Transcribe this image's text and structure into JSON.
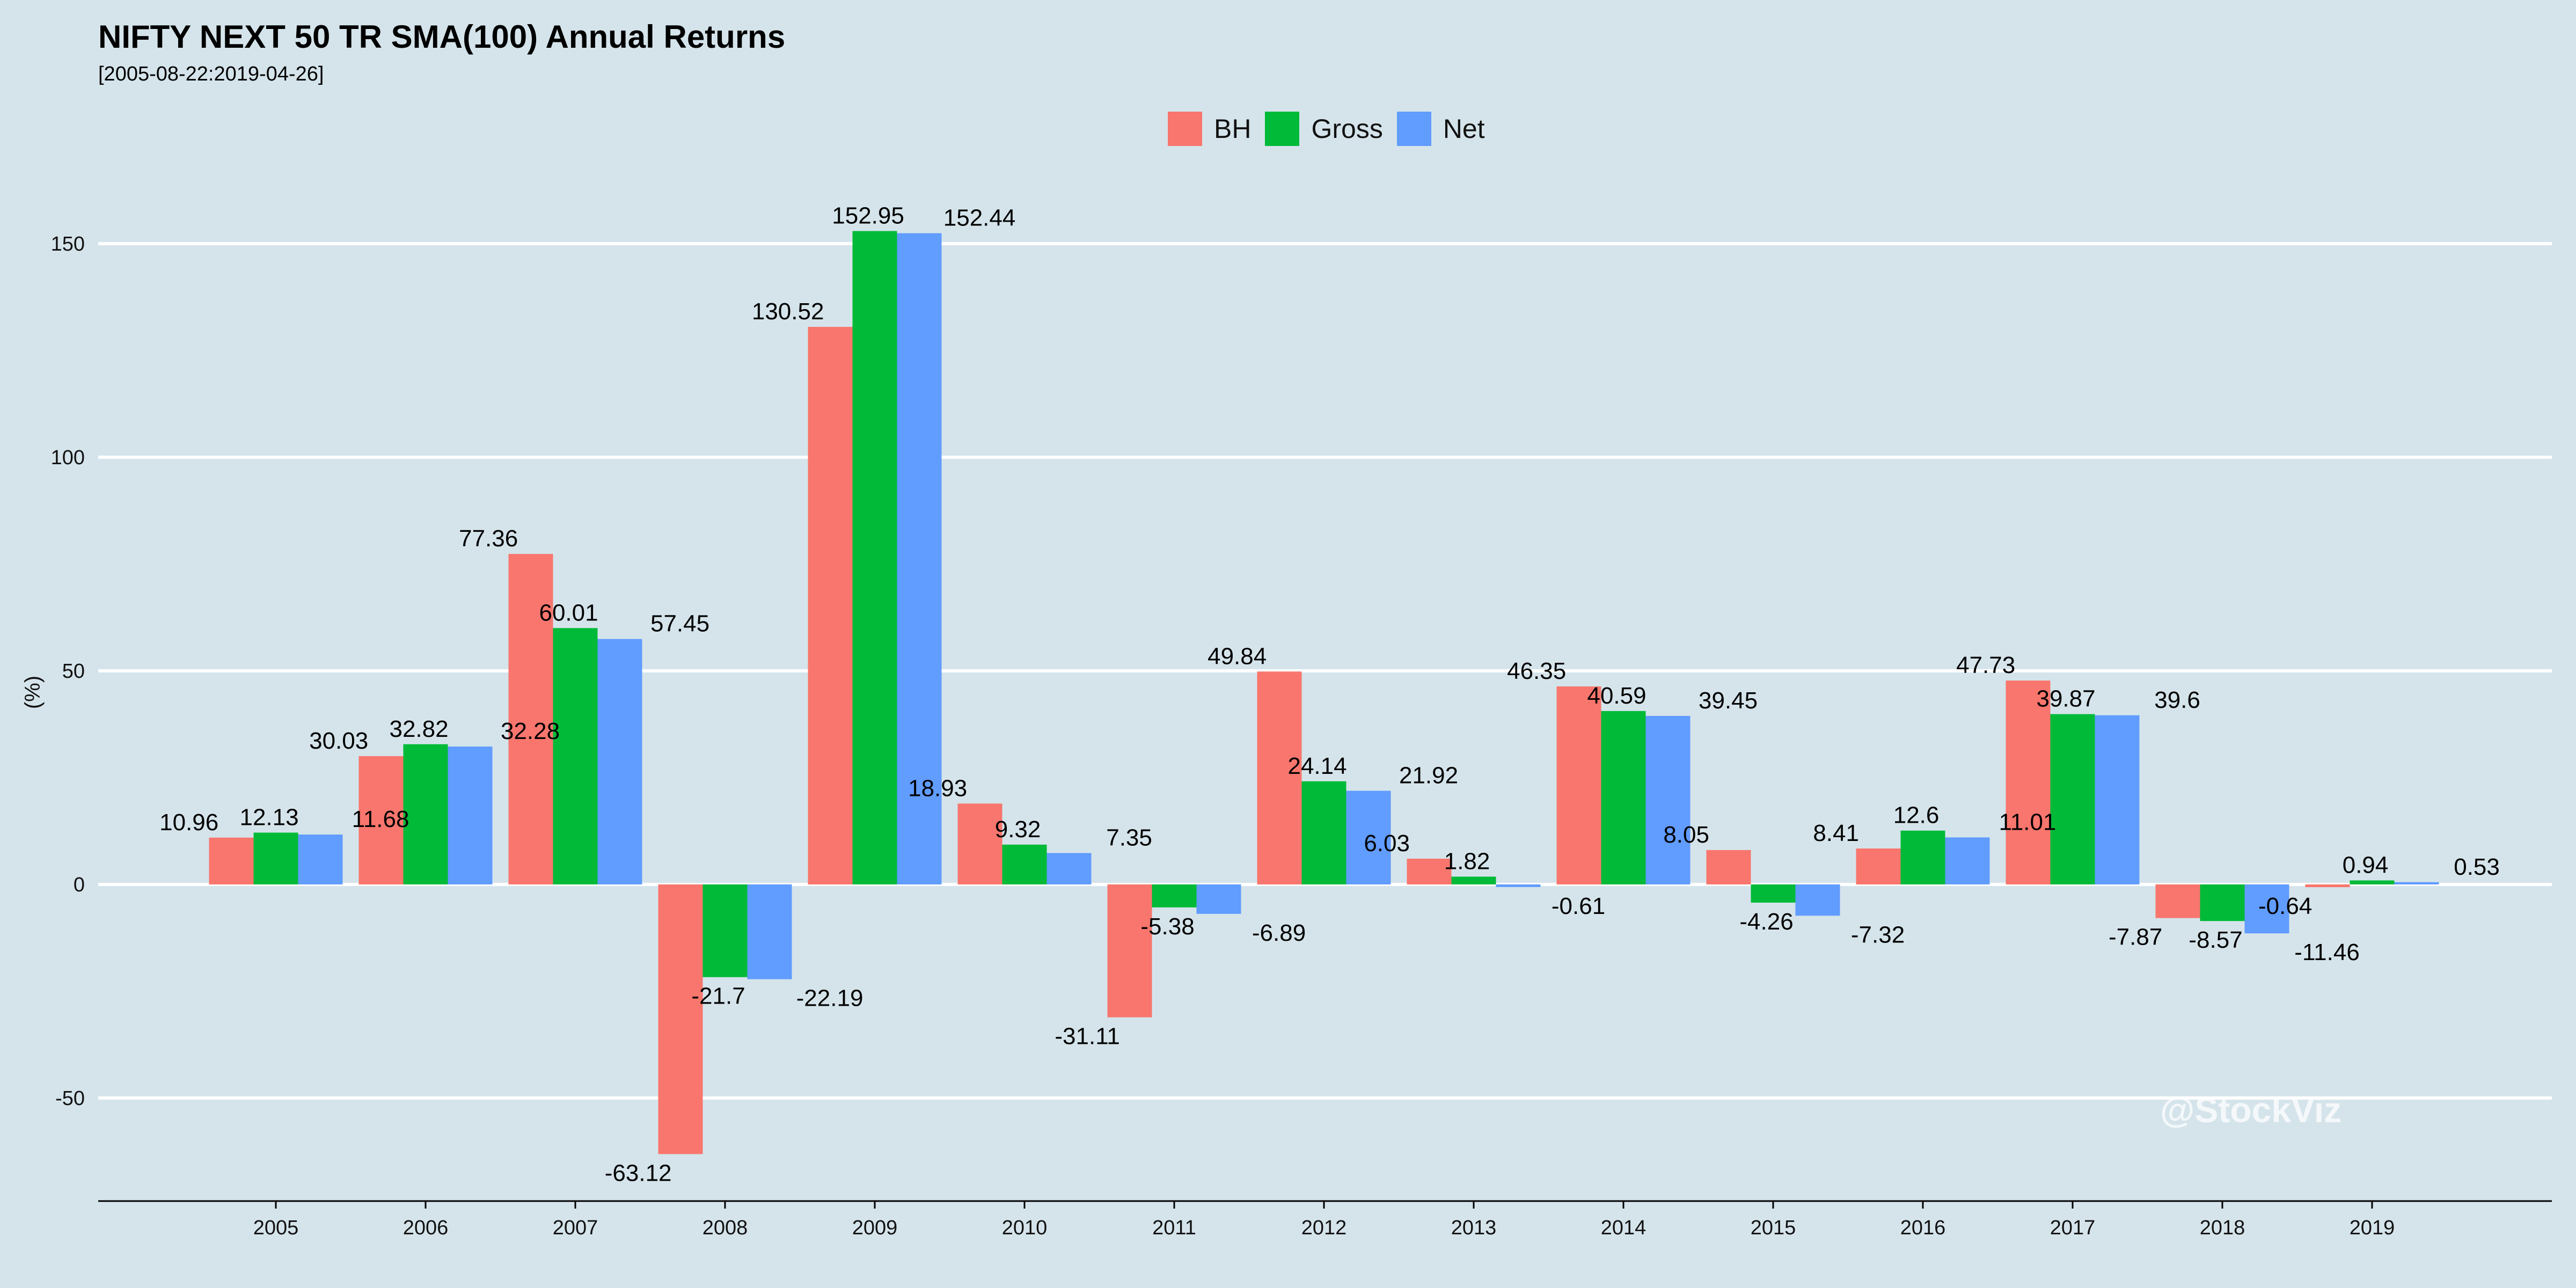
{
  "watermark": "@StockViz",
  "chart_data": {
    "type": "bar",
    "title": "NIFTY NEXT 50 TR SMA(100) Annual Returns",
    "subtitle": "[2005-08-22:2019-04-26]",
    "xlabel": "",
    "ylabel": "(%)",
    "ylim": [
      -74,
      150
    ],
    "yticks": [
      -50,
      0,
      50,
      100,
      150
    ],
    "grid": true,
    "legend_position": "top-center",
    "categories": [
      "2005",
      "2006",
      "2007",
      "2008",
      "2009",
      "2010",
      "2011",
      "2012",
      "2013",
      "2014",
      "2015",
      "2016",
      "2017",
      "2018",
      "2019"
    ],
    "series": [
      {
        "name": "BH",
        "color": "#f8766d",
        "values": [
          10.96,
          30.03,
          77.36,
          -63.12,
          130.52,
          18.93,
          -31.11,
          49.84,
          6.03,
          46.35,
          8.05,
          8.41,
          47.73,
          -7.87,
          -0.64
        ],
        "labels": [
          "10.96",
          "30.03",
          "77.36",
          "-63.12",
          "130.52",
          "18.93",
          "-31.11",
          "49.84",
          "6.03",
          "46.35",
          "8.05",
          "8.41",
          "47.73",
          "-7.87",
          "-0.64"
        ]
      },
      {
        "name": "Gross",
        "color": "#00ba38",
        "values": [
          12.13,
          32.82,
          60.01,
          -21.7,
          152.95,
          9.32,
          -5.38,
          24.14,
          1.82,
          40.59,
          -4.26,
          12.6,
          39.87,
          -8.57,
          0.94
        ],
        "labels": [
          "12.13",
          "32.82",
          "60.01",
          "-21.7",
          "152.95",
          "9.32",
          "-5.38",
          "24.14",
          "1.82",
          "40.59",
          "-4.26",
          "12.6",
          "39.87",
          "-8.57",
          "0.94"
        ]
      },
      {
        "name": "Net",
        "color": "#619cff",
        "values": [
          11.68,
          32.28,
          57.45,
          -22.19,
          152.44,
          7.35,
          -6.89,
          21.92,
          -0.61,
          39.45,
          -7.32,
          11.01,
          39.6,
          -11.46,
          0.53
        ],
        "labels": [
          "11.68",
          "32.28",
          "57.45",
          "-22.19",
          "152.44",
          "7.35",
          "-6.89",
          "21.92",
          "-0.61",
          "39.45",
          "-7.32",
          "11.01",
          "39.6",
          "-11.46",
          "0.53"
        ]
      }
    ]
  }
}
